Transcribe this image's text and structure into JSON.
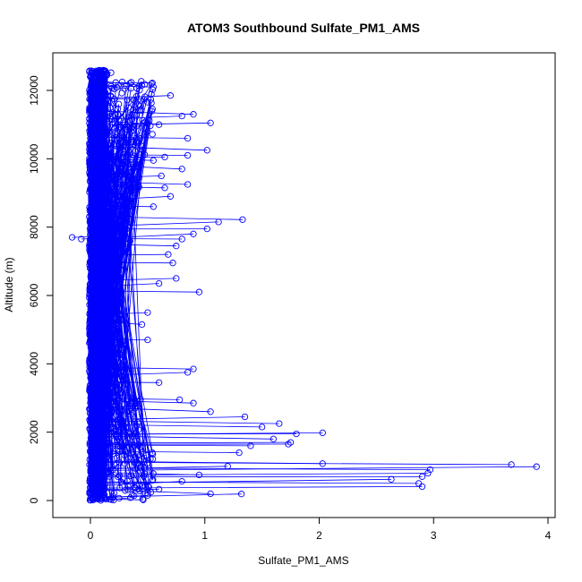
{
  "chart_data": {
    "type": "scatter",
    "title": "ATOM3 Southbound Sulfate_PM1_AMS",
    "xlabel": "Sulfate_PM1_AMS",
    "ylabel": "Altitude (m)",
    "xlim": [
      -0.3,
      4.05
    ],
    "ylim": [
      -250,
      13000
    ],
    "xticks": [
      0,
      1,
      2,
      3,
      4
    ],
    "xtick_labels": [
      "0",
      "1",
      "2",
      "3",
      "4"
    ],
    "yticks": [
      0,
      2000,
      4000,
      6000,
      8000,
      10000,
      12000
    ],
    "ytick_labels": [
      "0",
      "2000",
      "4000",
      "6000",
      "8000",
      "10000",
      "12000"
    ],
    "grid": false,
    "legend": "none",
    "series": [
      {
        "color": "#0000ff",
        "style": "points-and-lines",
        "marker": "open-circle",
        "points": [
          [
            0.08,
            12580
          ],
          [
            0.12,
            12550
          ],
          [
            0.18,
            12520
          ],
          [
            0.05,
            12500
          ],
          [
            0.45,
            12150
          ],
          [
            0.55,
            12100
          ],
          [
            0.3,
            12050
          ],
          [
            0.7,
            11850
          ],
          [
            0.9,
            11300
          ],
          [
            0.8,
            11250
          ],
          [
            1.05,
            11050
          ],
          [
            0.6,
            11000
          ],
          [
            0.85,
            10600
          ],
          [
            0.4,
            10500
          ],
          [
            1.02,
            10250
          ],
          [
            0.85,
            10100
          ],
          [
            0.65,
            10050
          ],
          [
            0.55,
            9950
          ],
          [
            0.8,
            9700
          ],
          [
            0.62,
            9500
          ],
          [
            0.85,
            9250
          ],
          [
            0.65,
            9150
          ],
          [
            0.7,
            8900
          ],
          [
            0.55,
            8600
          ],
          [
            1.33,
            8220
          ],
          [
            1.12,
            8150
          ],
          [
            1.02,
            7950
          ],
          [
            0.9,
            7800
          ],
          [
            0.8,
            7650
          ],
          [
            0.75,
            7450
          ],
          [
            0.68,
            7200
          ],
          [
            -0.16,
            7700
          ],
          [
            -0.08,
            7650
          ],
          [
            0.72,
            6950
          ],
          [
            0.75,
            6500
          ],
          [
            0.6,
            6350
          ],
          [
            0.95,
            6100
          ],
          [
            0.5,
            5500
          ],
          [
            0.45,
            5150
          ],
          [
            0.5,
            4700
          ],
          [
            0.9,
            3850
          ],
          [
            0.85,
            3750
          ],
          [
            0.6,
            3450
          ],
          [
            0.78,
            2950
          ],
          [
            0.9,
            2850
          ],
          [
            1.05,
            2600
          ],
          [
            1.35,
            2450
          ],
          [
            1.65,
            2250
          ],
          [
            1.5,
            2150
          ],
          [
            2.03,
            1980
          ],
          [
            1.8,
            1950
          ],
          [
            1.75,
            1700
          ],
          [
            1.6,
            1800
          ],
          [
            1.4,
            1600
          ],
          [
            1.3,
            1400
          ],
          [
            1.73,
            1650
          ],
          [
            2.03,
            1080
          ],
          [
            3.68,
            1050
          ],
          [
            3.9,
            990
          ],
          [
            2.97,
            900
          ],
          [
            2.95,
            800
          ],
          [
            2.9,
            700
          ],
          [
            2.63,
            620
          ],
          [
            2.87,
            500
          ],
          [
            2.9,
            410
          ],
          [
            1.32,
            190
          ],
          [
            1.05,
            200
          ],
          [
            1.2,
            1000
          ],
          [
            0.95,
            750
          ],
          [
            0.8,
            560
          ],
          [
            0.6,
            330
          ],
          [
            0.5,
            150
          ],
          [
            0.35,
            80
          ],
          [
            0.2,
            120
          ],
          [
            0.1,
            60
          ],
          [
            0.02,
            300
          ]
        ]
      }
    ]
  }
}
